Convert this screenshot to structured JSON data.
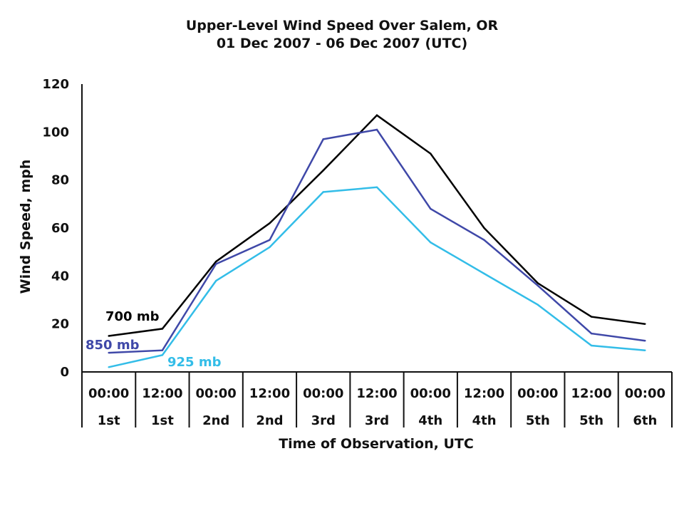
{
  "chart_data": {
    "type": "line",
    "title": "Upper-Level Wind Speed Over Salem, OR",
    "subtitle": "01 Dec 2007 - 06 Dec 2007 (UTC)",
    "xlabel": "Time of Observation, UTC",
    "ylabel": "Wind Speed, mph",
    "ylim": [
      0,
      120
    ],
    "yticks": [
      0,
      20,
      40,
      60,
      80,
      100,
      120
    ],
    "grid": false,
    "categories": [
      {
        "time": "00:00",
        "day": "1st"
      },
      {
        "time": "12:00",
        "day": "1st"
      },
      {
        "time": "00:00",
        "day": "2nd"
      },
      {
        "time": "12:00",
        "day": "2nd"
      },
      {
        "time": "00:00",
        "day": "3rd"
      },
      {
        "time": "12:00",
        "day": "3rd"
      },
      {
        "time": "00:00",
        "day": "4th"
      },
      {
        "time": "12:00",
        "day": "4th"
      },
      {
        "time": "00:00",
        "day": "5th"
      },
      {
        "time": "12:00",
        "day": "5th"
      },
      {
        "time": "00:00",
        "day": "6th"
      }
    ],
    "series": [
      {
        "name": "700 mb",
        "color": "#000000",
        "values": [
          15,
          18,
          46,
          62,
          84,
          107,
          91,
          60,
          37,
          23,
          20
        ]
      },
      {
        "name": "850 mb",
        "color": "#3f48a8",
        "values": [
          8,
          9,
          45,
          55,
          97,
          101,
          68,
          55,
          36,
          16,
          13
        ]
      },
      {
        "name": "925 mb",
        "color": "#33bde8",
        "values": [
          2,
          7,
          38,
          52,
          75,
          77,
          54,
          41,
          28,
          11,
          9
        ]
      }
    ]
  }
}
